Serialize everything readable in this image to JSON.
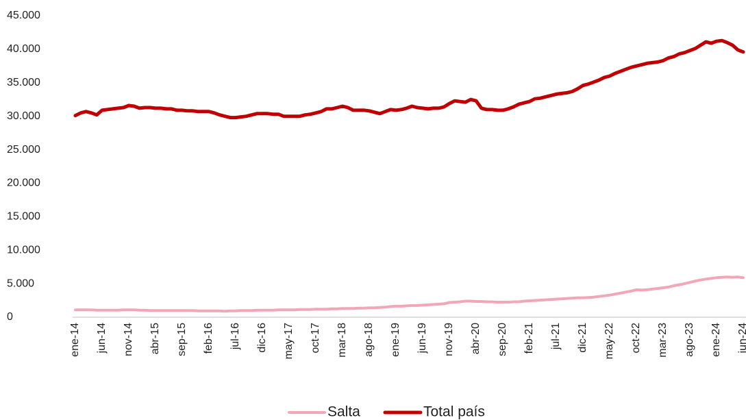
{
  "chart_data": {
    "type": "line",
    "categories": [
      "ene-14",
      null,
      null,
      null,
      null,
      "jun-14",
      null,
      null,
      null,
      null,
      "nov-14",
      null,
      null,
      null,
      null,
      "abr-15",
      null,
      null,
      null,
      null,
      "sep-15",
      null,
      null,
      null,
      null,
      "feb-16",
      null,
      null,
      null,
      null,
      "jul-16",
      null,
      null,
      null,
      null,
      "dic-16",
      null,
      null,
      null,
      null,
      "may-17",
      null,
      null,
      null,
      null,
      "oct-17",
      null,
      null,
      null,
      null,
      "mar-18",
      null,
      null,
      null,
      null,
      "ago-18",
      null,
      null,
      null,
      null,
      "ene-19",
      null,
      null,
      null,
      null,
      "jun-19",
      null,
      null,
      null,
      null,
      "nov-19",
      null,
      null,
      null,
      null,
      "abr-20",
      null,
      null,
      null,
      null,
      "sep-20",
      null,
      null,
      null,
      null,
      "feb-21",
      null,
      null,
      null,
      null,
      "jul-21",
      null,
      null,
      null,
      null,
      "dic-21",
      null,
      null,
      null,
      null,
      "may-22",
      null,
      null,
      null,
      null,
      "oct-22",
      null,
      null,
      null,
      null,
      "mar-23",
      null,
      null,
      null,
      null,
      "ago-23",
      null,
      null,
      null,
      null,
      "ene-24",
      null,
      null,
      null,
      null,
      "jun-24"
    ],
    "series": [
      {
        "name": "Salta",
        "color": "#f2a7b6",
        "values": [
          1100,
          1100,
          1100,
          1100,
          1050,
          1050,
          1050,
          1050,
          1050,
          1100,
          1100,
          1100,
          1050,
          1050,
          1000,
          1000,
          1000,
          1000,
          1000,
          1000,
          1000,
          1000,
          1000,
          950,
          950,
          950,
          950,
          950,
          900,
          950,
          950,
          1000,
          1000,
          1000,
          1050,
          1050,
          1050,
          1050,
          1100,
          1100,
          1100,
          1100,
          1150,
          1150,
          1150,
          1200,
          1200,
          1200,
          1250,
          1250,
          1300,
          1300,
          1300,
          1350,
          1350,
          1400,
          1400,
          1450,
          1500,
          1600,
          1650,
          1650,
          1700,
          1750,
          1750,
          1800,
          1850,
          1900,
          1950,
          2000,
          2200,
          2250,
          2300,
          2400,
          2400,
          2350,
          2350,
          2300,
          2300,
          2250,
          2250,
          2250,
          2300,
          2300,
          2400,
          2450,
          2500,
          2550,
          2600,
          2650,
          2700,
          2750,
          2800,
          2850,
          2900,
          2900,
          2950,
          3000,
          3100,
          3200,
          3300,
          3450,
          3600,
          3750,
          3900,
          4100,
          4050,
          4100,
          4200,
          4300,
          4400,
          4500,
          4700,
          4850,
          5000,
          5200,
          5400,
          5550,
          5700,
          5800,
          5900,
          5950,
          6000,
          5950,
          6000,
          5900
        ]
      },
      {
        "name": "Total país",
        "color": "#c00000",
        "values": [
          30100,
          30500,
          30700,
          30500,
          30200,
          30900,
          31000,
          31100,
          31200,
          31300,
          31600,
          31500,
          31200,
          31300,
          31300,
          31200,
          31200,
          31100,
          31100,
          30900,
          30900,
          30800,
          30800,
          30700,
          30700,
          30700,
          30500,
          30200,
          30000,
          29800,
          29800,
          29900,
          30000,
          30200,
          30400,
          30400,
          30400,
          30300,
          30300,
          30000,
          30000,
          30000,
          30000,
          30200,
          30300,
          30500,
          30700,
          31100,
          31100,
          31300,
          31500,
          31300,
          30900,
          30900,
          30900,
          30800,
          30600,
          30400,
          30700,
          31000,
          30900,
          31000,
          31200,
          31500,
          31300,
          31200,
          31100,
          31200,
          31200,
          31400,
          31900,
          32300,
          32200,
          32100,
          32500,
          32300,
          31200,
          31000,
          31000,
          30900,
          30900,
          31100,
          31400,
          31800,
          32000,
          32200,
          32600,
          32700,
          32900,
          33100,
          33300,
          33400,
          33500,
          33700,
          34100,
          34600,
          34800,
          35100,
          35400,
          35800,
          36000,
          36400,
          36700,
          37000,
          37300,
          37500,
          37700,
          37900,
          38000,
          38100,
          38300,
          38700,
          38900,
          39300,
          39500,
          39800,
          40100,
          40600,
          41100,
          40900,
          41200,
          41300,
          41000,
          40600,
          39900,
          39600
        ]
      }
    ],
    "ylim": [
      0,
      45000
    ],
    "yticks": [
      0,
      {
        "value": 5000,
        "label": "5.000"
      },
      {
        "value": 10000,
        "label": "10.000"
      },
      {
        "value": 15000,
        "label": "15.000"
      },
      {
        "value": 20000,
        "label": "20.000"
      },
      {
        "value": 25000,
        "label": "25.000"
      },
      {
        "value": 30000,
        "label": "30.000"
      },
      {
        "value": 35000,
        "label": "35.000"
      },
      {
        "value": 40000,
        "label": "40.000"
      },
      {
        "value": 45000,
        "label": "45.000"
      }
    ],
    "grid": false,
    "legend": "bottom"
  }
}
